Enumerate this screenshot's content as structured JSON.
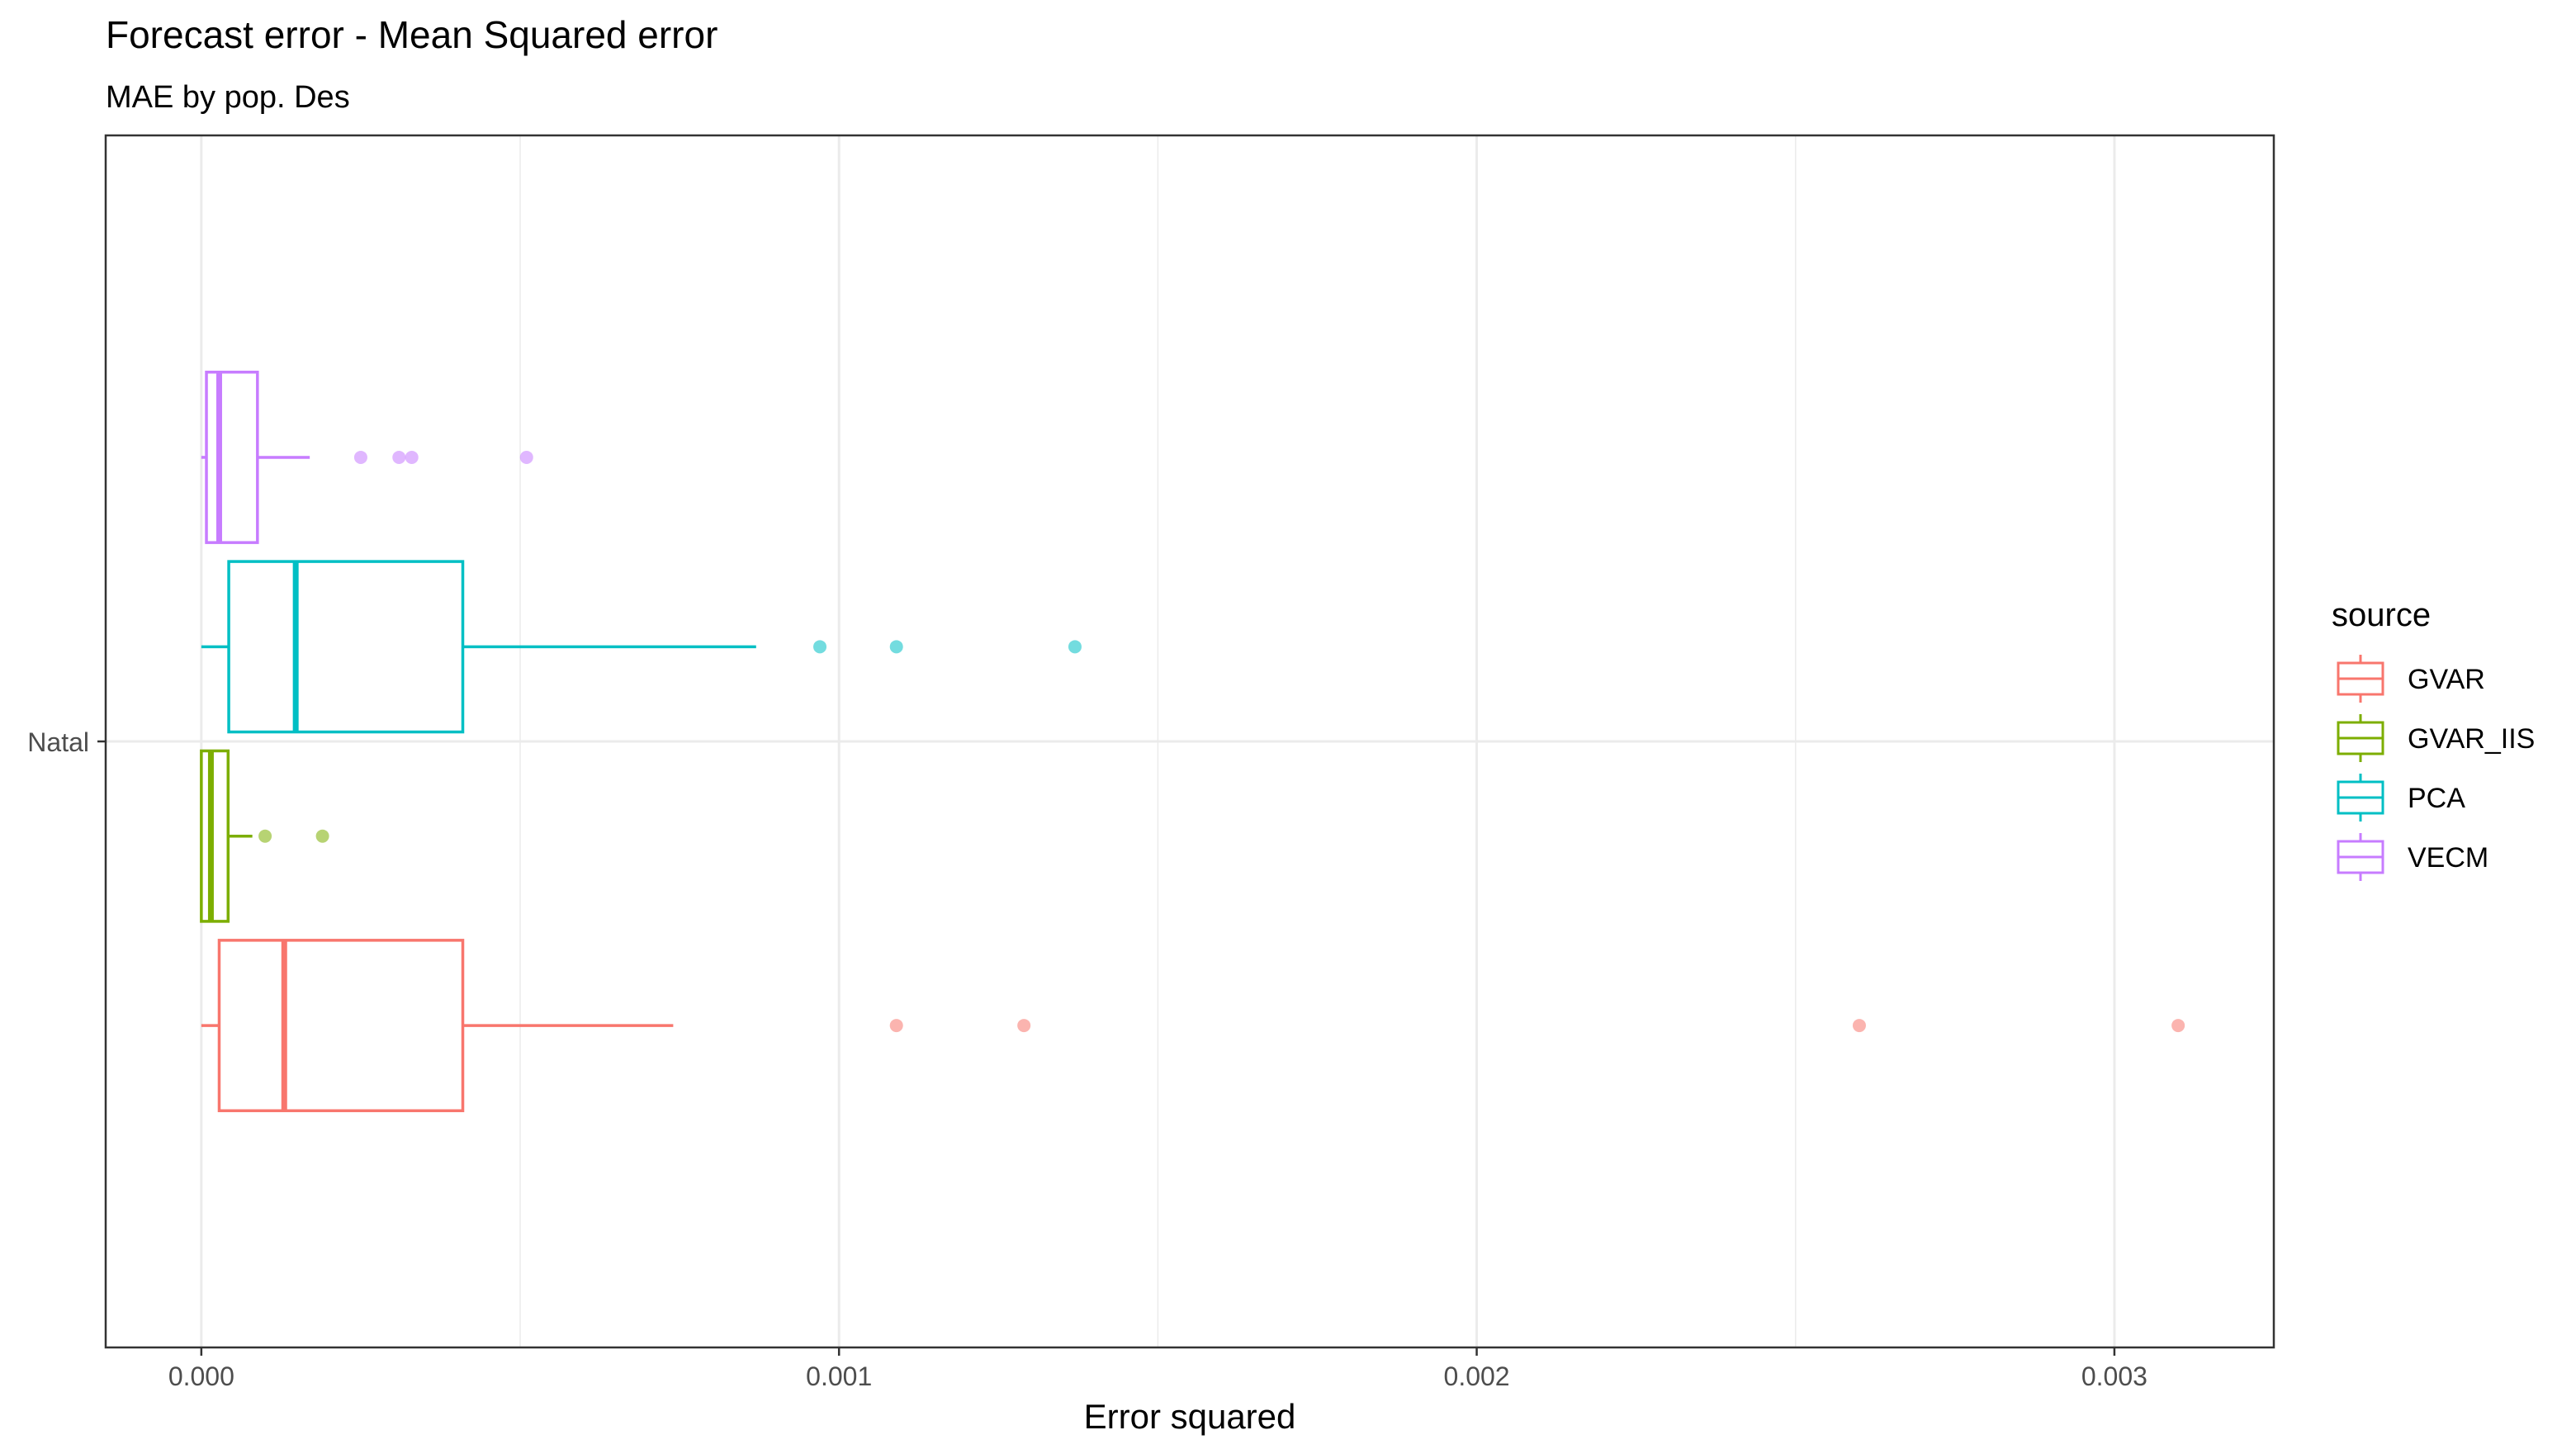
{
  "chart_data": {
    "type": "boxplot",
    "orientation": "horizontal",
    "title": "Forecast error - Mean Squared error",
    "subtitle": "MAE by pop. Des",
    "xlabel": "Error squared",
    "ylabel": "",
    "xlim": [
      -0.00015,
      0.00325
    ],
    "x_ticks": [
      0,
      0.001,
      0.002,
      0.003
    ],
    "x_tick_labels": [
      "0.000",
      "0.001",
      "0.002",
      "0.003"
    ],
    "x_minor_ticks": [
      0.0005,
      0.0015,
      0.0025
    ],
    "categories": [
      "Natal"
    ],
    "grid": true,
    "legend": {
      "title": "source",
      "position": "right",
      "entries": [
        "GVAR",
        "GVAR_IIS",
        "PCA",
        "VECM"
      ]
    },
    "series": [
      {
        "name": "GVAR",
        "color": "#F8766D",
        "whisker_low": 0.0,
        "q1": 2.8e-05,
        "median": 0.00013,
        "q3": 0.00041,
        "whisker_high": 0.00074,
        "outliers": [
          0.00109,
          0.00129,
          0.0026,
          0.0031
        ]
      },
      {
        "name": "GVAR_IIS",
        "color": "#7CAE00",
        "whisker_low": 0.0,
        "q1": 0.0,
        "median": 1.5e-05,
        "q3": 4.2e-05,
        "whisker_high": 8e-05,
        "outliers": [
          0.0001,
          0.00019
        ]
      },
      {
        "name": "PCA",
        "color": "#00BFC4",
        "whisker_low": 0.0,
        "q1": 4.3e-05,
        "median": 0.000148,
        "q3": 0.00041,
        "whisker_high": 0.00087,
        "outliers": [
          0.00097,
          0.00109,
          0.00137
        ]
      },
      {
        "name": "VECM",
        "color": "#C77CFF",
        "whisker_low": 0.0,
        "q1": 8e-06,
        "median": 2.8e-05,
        "q3": 8.8e-05,
        "whisker_high": 0.00017,
        "outliers": [
          0.00025,
          0.00031,
          0.00033,
          0.00051
        ]
      }
    ]
  }
}
